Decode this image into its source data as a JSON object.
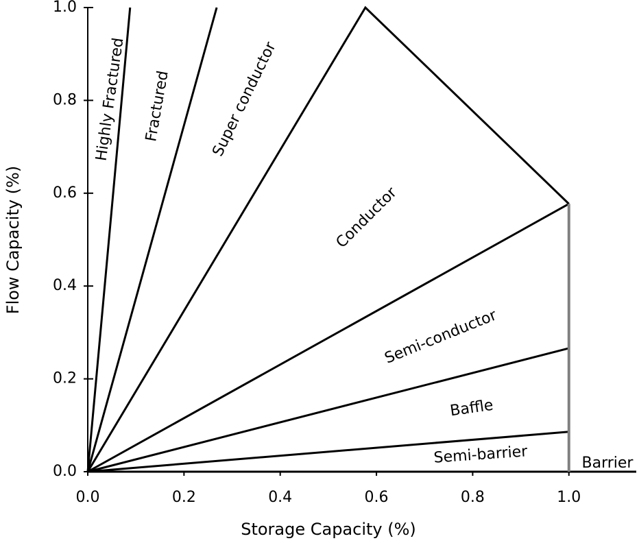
{
  "chart_data": {
    "type": "line",
    "x_label": "Storage Capacity (%)",
    "y_label": "Flow  Capacity (%)",
    "xlim": [
      0,
      1.14
    ],
    "ylim": [
      0,
      1
    ],
    "xticks": [
      {
        "value": 0,
        "label": "0.0"
      },
      {
        "value": 0.2,
        "label": "0.2"
      },
      {
        "value": 0.4,
        "label": "0.4"
      },
      {
        "value": 0.6,
        "label": "0.6"
      },
      {
        "value": 0.8,
        "label": "0.8"
      },
      {
        "value": 1,
        "label": "1.0"
      }
    ],
    "yticks": [
      {
        "value": 0,
        "label": "0.0"
      },
      {
        "value": 0.2,
        "label": "0.2"
      },
      {
        "value": 0.4,
        "label": "0.4"
      },
      {
        "value": 0.6,
        "label": "0.6"
      },
      {
        "value": 0.8,
        "label": "0.8"
      },
      {
        "value": 1,
        "label": "1.0"
      }
    ],
    "series": [
      {
        "color": "#000000",
        "x": [
          0,
          0.088
        ],
        "values": [
          0,
          1
        ]
      },
      {
        "color": "#000000",
        "x": [
          0,
          0.268
        ],
        "values": [
          0,
          1
        ]
      },
      {
        "color": "#000000",
        "x": [
          0,
          0.577,
          1
        ],
        "values": [
          0,
          1,
          0.577
        ]
      },
      {
        "color": "#000000",
        "x": [
          0,
          1
        ],
        "values": [
          0,
          0.577
        ]
      },
      {
        "color": "#000000",
        "x": [
          0,
          1
        ],
        "values": [
          0,
          0.266
        ]
      },
      {
        "color": "#000000",
        "x": [
          0,
          1
        ],
        "values": [
          0,
          0.086
        ]
      },
      {
        "color": "#000000",
        "x": [
          0,
          1.14
        ],
        "values": [
          0,
          0
        ]
      },
      {
        "color": "#808080",
        "x": [
          1,
          1
        ],
        "values": [
          0,
          0.577
        ]
      }
    ],
    "annotations": [
      "Highly Fractured",
      "Fractured",
      "Super conductor",
      "Conductor",
      "Semi-conductor",
      "Baffle",
      "Semi-barrier",
      "Barrier"
    ]
  }
}
